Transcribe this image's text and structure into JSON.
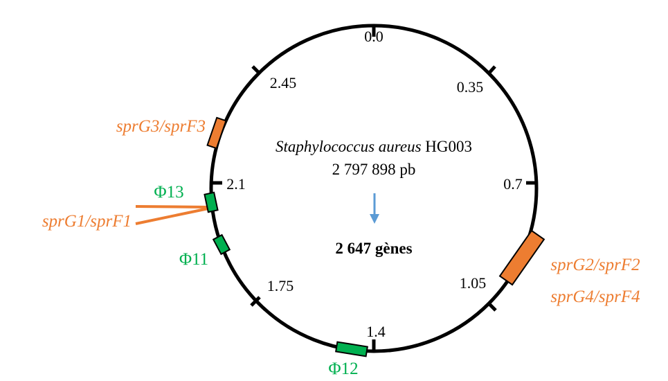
{
  "center": {
    "organism_italic": "Staphylococcus aureus",
    "strain": "HG003",
    "size": "2 797 898 pb",
    "genes": "2 647 gènes"
  },
  "ticks": [
    "0.0",
    "0.35",
    "0.7",
    "1.05",
    "1.4",
    "1.75",
    "2.1",
    "2.45"
  ],
  "loci": {
    "sprG3_sprF3": "sprG3/sprF3",
    "sprG1_sprF1": "sprG1/sprF1",
    "sprG2_sprF2": "sprG2/sprF2",
    "sprG4_sprF4": "sprG4/sprF4"
  },
  "phages": {
    "phi13": "Φ13",
    "phi11": "Φ11",
    "phi12": "Φ12"
  },
  "colors": {
    "chromosome": "#000000",
    "toxin_antitoxin": "#ED7D31",
    "prophage": "#00B050",
    "arrow": "#5B9BD5"
  }
}
